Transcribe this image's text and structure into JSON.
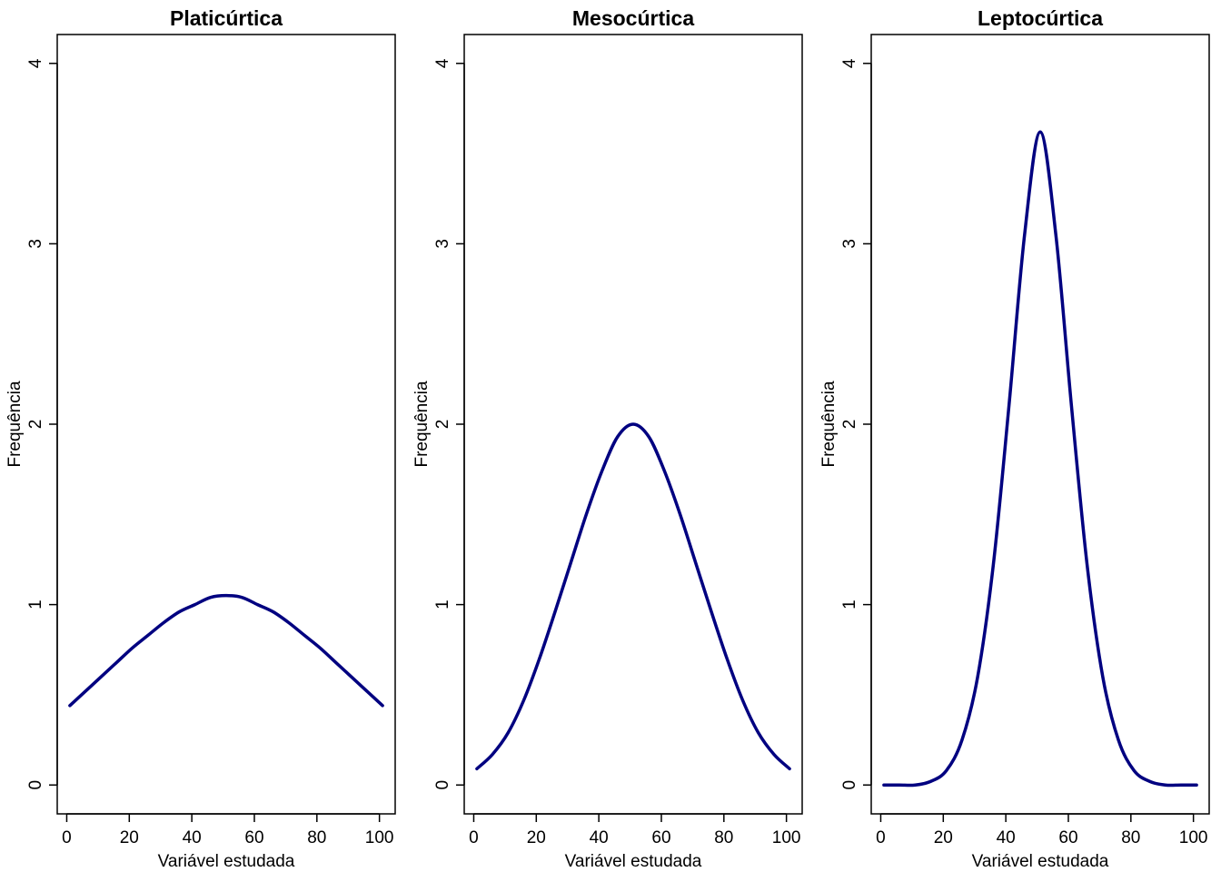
{
  "chart_data": [
    {
      "type": "line",
      "title": "Platicúrtica",
      "xlabel": "Variável estudada",
      "ylabel": "Frequência",
      "xlim": [
        -3.04,
        105.04
      ],
      "ylim": [
        -0.16,
        4.16
      ],
      "x_ticks": [
        0,
        20,
        40,
        60,
        80,
        100
      ],
      "y_ticks": [
        0,
        1,
        2,
        3,
        4
      ],
      "line_color": "#000080",
      "grid": false,
      "series": [
        {
          "x": [
            1,
            6,
            11,
            16,
            21,
            26,
            31,
            36,
            41,
            46,
            51,
            56,
            61,
            66,
            71,
            76,
            81,
            86,
            91,
            96,
            101
          ],
          "y": [
            0.44,
            0.52,
            0.6,
            0.68,
            0.76,
            0.83,
            0.9,
            0.96,
            1.0,
            1.04,
            1.05,
            1.04,
            1.0,
            0.96,
            0.9,
            0.83,
            0.76,
            0.68,
            0.6,
            0.52,
            0.44
          ]
        }
      ]
    },
    {
      "type": "line",
      "title": "Mesocúrtica",
      "xlabel": "Variável estudada",
      "ylabel": "Frequência",
      "xlim": [
        -3.04,
        105.04
      ],
      "ylim": [
        -0.16,
        4.16
      ],
      "x_ticks": [
        0,
        20,
        40,
        60,
        80,
        100
      ],
      "y_ticks": [
        0,
        1,
        2,
        3,
        4
      ],
      "line_color": "#000080",
      "grid": false,
      "series": [
        {
          "x": [
            1,
            6,
            11,
            16,
            21,
            26,
            31,
            36,
            41,
            46,
            51,
            56,
            61,
            66,
            71,
            76,
            81,
            86,
            91,
            96,
            101
          ],
          "y": [
            0.09,
            0.17,
            0.29,
            0.47,
            0.7,
            0.96,
            1.23,
            1.5,
            1.74,
            1.93,
            2.0,
            1.93,
            1.74,
            1.5,
            1.23,
            0.96,
            0.7,
            0.47,
            0.29,
            0.17,
            0.09
          ]
        }
      ]
    },
    {
      "type": "line",
      "title": "Leptocúrtica",
      "xlabel": "Variável estudada",
      "ylabel": "Frequência",
      "xlim": [
        -3.04,
        105.04
      ],
      "ylim": [
        -0.16,
        4.16
      ],
      "x_ticks": [
        0,
        20,
        40,
        60,
        80,
        100
      ],
      "y_ticks": [
        0,
        1,
        2,
        3,
        4
      ],
      "line_color": "#000080",
      "grid": false,
      "series": [
        {
          "x": [
            1,
            6,
            11,
            16,
            21,
            26,
            31,
            36,
            41,
            46,
            51,
            56,
            61,
            66,
            71,
            76,
            81,
            86,
            91,
            96,
            101
          ],
          "y": [
            0.0,
            0.0,
            0.0,
            0.02,
            0.08,
            0.25,
            0.6,
            1.22,
            2.1,
            3.05,
            3.62,
            3.05,
            2.1,
            1.22,
            0.6,
            0.25,
            0.08,
            0.02,
            0.0,
            0.0,
            0.0
          ]
        }
      ]
    }
  ]
}
